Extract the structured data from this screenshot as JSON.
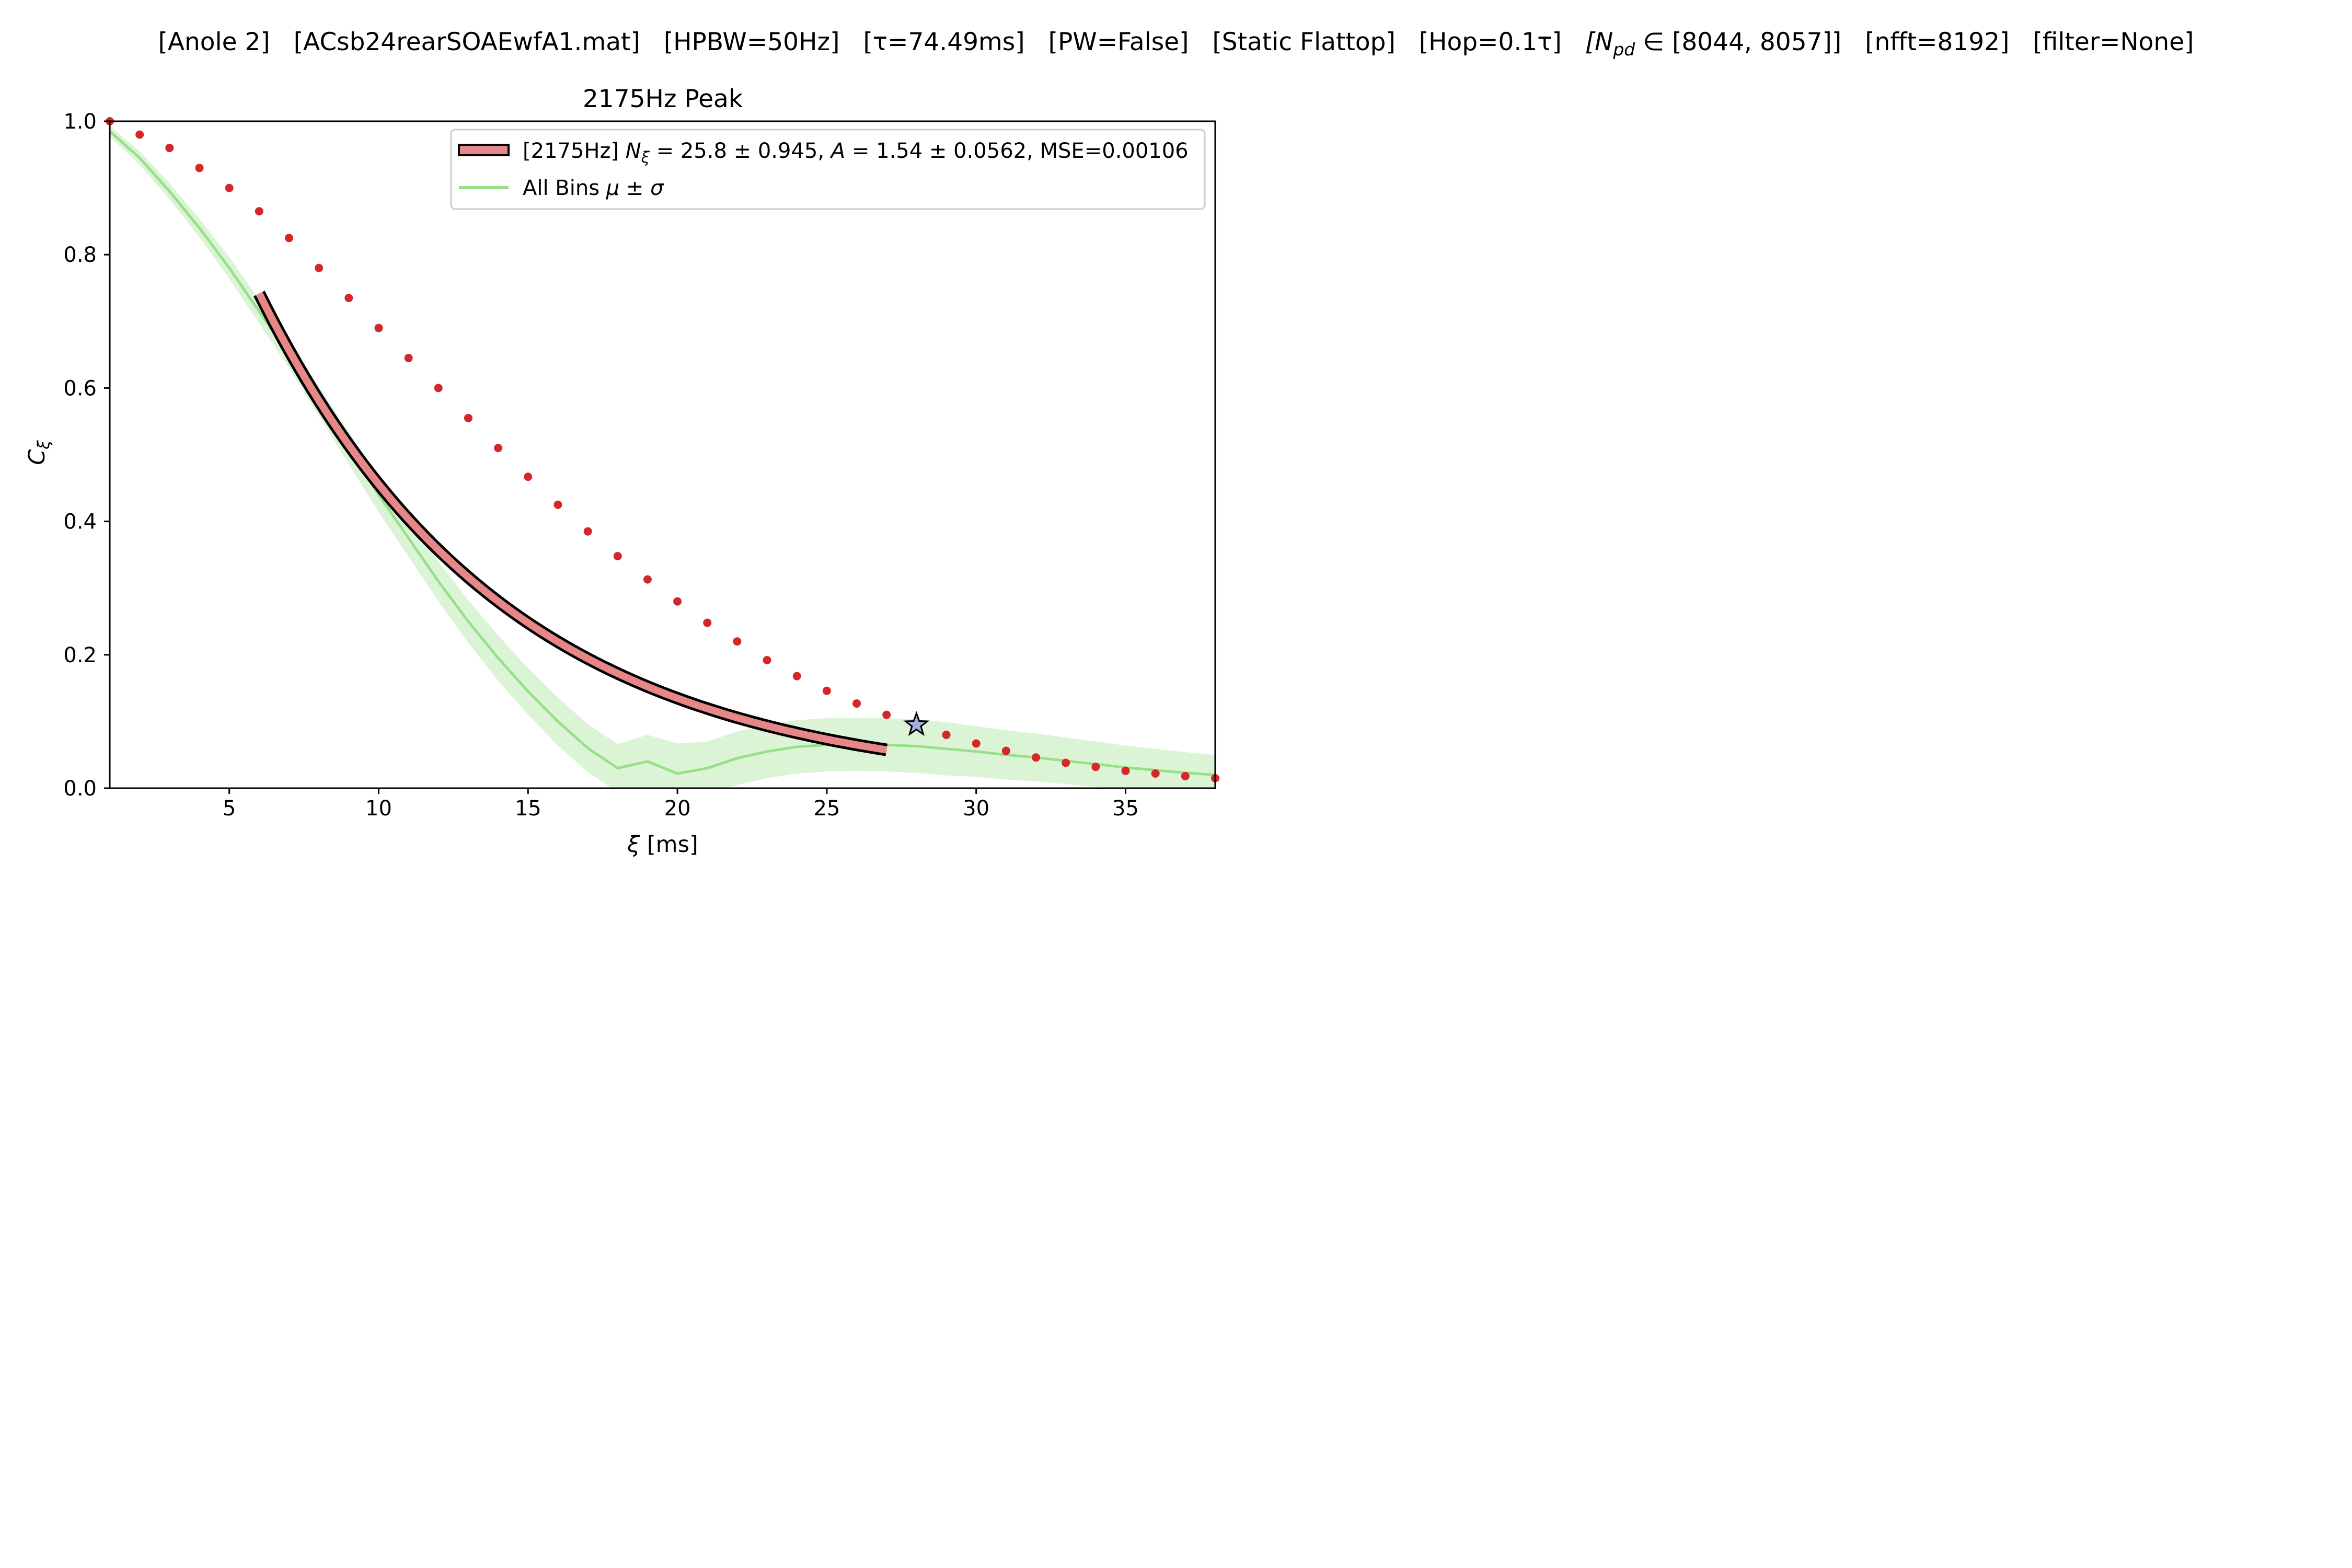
{
  "figure": {
    "suptitle_parts": [
      "[Anole 2]",
      "[ACsb24rearSOAEwfA1.mat]",
      "[HPBW=50Hz]",
      "[τ=74.49ms]",
      "[PW=False]",
      "[Static Flattop]",
      "[Hop=0.1τ]",
      "[N",
      "pd",
      " ∈ [8044, 8057]]",
      "[nfft=8192]",
      "[filter=None]"
    ]
  },
  "chart_data": {
    "type": "scatter",
    "title": "2175Hz Peak",
    "xlabel": "ξ [ms]",
    "ylabel": "C",
    "ylabel_sub": "ξ",
    "xlim": [
      1,
      38
    ],
    "ylim": [
      0,
      1.0
    ],
    "xticks": [
      5,
      10,
      15,
      20,
      25,
      30,
      35
    ],
    "yticks": [
      0.0,
      0.2,
      0.4,
      0.6,
      0.8,
      1.0
    ],
    "grid": false,
    "legend_position": "top-right",
    "colors": {
      "points": "#d62728",
      "fit_fill": "#e68686",
      "fit_edge": "#000000",
      "band_line": "#98df8a",
      "band_fill": "#98df8a",
      "star": "#9fb0e0"
    },
    "series": [
      {
        "kind": "points",
        "x": [
          1,
          2,
          3,
          4,
          5,
          6,
          7,
          8,
          9,
          10,
          11,
          12,
          13,
          14,
          15,
          16,
          17,
          18,
          19,
          20,
          21,
          22,
          23,
          24,
          25,
          26,
          27,
          28,
          29,
          30,
          31,
          32,
          33,
          34,
          35,
          36,
          37,
          38
        ],
        "y": [
          1.0,
          0.98,
          0.96,
          0.93,
          0.9,
          0.865,
          0.825,
          0.78,
          0.735,
          0.69,
          0.645,
          0.6,
          0.555,
          0.51,
          0.467,
          0.425,
          0.385,
          0.348,
          0.313,
          0.28,
          0.248,
          0.22,
          0.192,
          0.168,
          0.146,
          0.127,
          0.11,
          0.095,
          0.08,
          0.067,
          0.056,
          0.046,
          0.038,
          0.032,
          0.026,
          0.022,
          0.018,
          0.015
        ]
      },
      {
        "kind": "fit",
        "label_prefix": "[2175Hz] ",
        "label_N": "N",
        "label_N_sub": "ξ",
        "label_rest": " = 25.8 ± 0.945, ",
        "label_A": "A",
        "label_tail": " = 1.54 ± 0.0562, MSE=0.00106",
        "N_xi": 25.8,
        "A": 1.54,
        "x_range": [
          6,
          27
        ]
      },
      {
        "kind": "band",
        "label_prefix": "All Bins ",
        "label_math": "μ ± σ",
        "x": [
          1,
          2,
          3,
          4,
          5,
          6,
          7,
          8,
          9,
          10,
          11,
          12,
          13,
          14,
          15,
          16,
          17,
          18,
          19,
          20,
          21,
          22,
          23,
          24,
          25,
          26,
          27,
          28,
          29,
          30,
          31,
          32,
          33,
          34,
          35,
          36,
          37,
          38
        ],
        "mean": [
          0.985,
          0.945,
          0.895,
          0.84,
          0.78,
          0.715,
          0.65,
          0.58,
          0.51,
          0.44,
          0.375,
          0.31,
          0.25,
          0.195,
          0.145,
          0.1,
          0.06,
          0.03,
          0.04,
          0.022,
          0.03,
          0.045,
          0.055,
          0.062,
          0.065,
          0.066,
          0.065,
          0.063,
          0.059,
          0.055,
          0.05,
          0.046,
          0.041,
          0.036,
          0.031,
          0.027,
          0.023,
          0.02
        ],
        "sd": [
          0.008,
          0.01,
          0.012,
          0.014,
          0.016,
          0.018,
          0.02,
          0.022,
          0.024,
          0.026,
          0.028,
          0.03,
          0.032,
          0.034,
          0.035,
          0.036,
          0.036,
          0.036,
          0.04,
          0.045,
          0.04,
          0.04,
          0.04,
          0.04,
          0.04,
          0.04,
          0.04,
          0.04,
          0.04,
          0.038,
          0.037,
          0.036,
          0.035,
          0.034,
          0.033,
          0.032,
          0.031,
          0.03
        ]
      },
      {
        "kind": "marker",
        "shape": "star",
        "x": 28,
        "y": 0.095
      }
    ]
  }
}
